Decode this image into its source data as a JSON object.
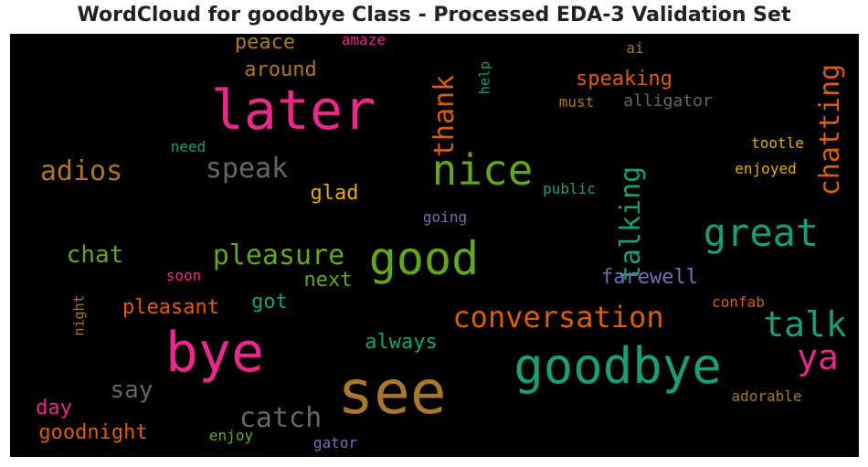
{
  "title": "WordCloud for goodbye Class - Processed EDA-3 Validation Set",
  "chart_data": {
    "type": "wordcloud",
    "title": "WordCloud for goodbye Class - Processed EDA-3 Validation Set",
    "background": "#000000",
    "words": [
      {
        "text": "see",
        "color": "#a8772b",
        "vertical": false
      },
      {
        "text": "bye",
        "color": "#e7298a",
        "vertical": false
      },
      {
        "text": "goodbye",
        "color": "#1b9e77",
        "vertical": false
      },
      {
        "text": "later",
        "color": "#e7298a",
        "vertical": false
      },
      {
        "text": "nice",
        "color": "#66a61e",
        "vertical": false
      },
      {
        "text": "good",
        "color": "#66a61e",
        "vertical": false
      },
      {
        "text": "great",
        "color": "#1b9e77",
        "vertical": false
      },
      {
        "text": "conversation",
        "color": "#d95f02",
        "vertical": false
      },
      {
        "text": "talk",
        "color": "#1b9e77",
        "vertical": false
      },
      {
        "text": "ya",
        "color": "#e7298a",
        "vertical": false
      },
      {
        "text": "chatting",
        "color": "#d95f02",
        "vertical": true
      },
      {
        "text": "talking",
        "color": "#1b9e77",
        "vertical": true
      },
      {
        "text": "thank",
        "color": "#d95f02",
        "vertical": true
      },
      {
        "text": "pleasure",
        "color": "#66a61e",
        "vertical": false
      },
      {
        "text": "speak",
        "color": "#666666",
        "vertical": false
      },
      {
        "text": "adios",
        "color": "#a8772b",
        "vertical": false
      },
      {
        "text": "catch",
        "color": "#666666",
        "vertical": false
      },
      {
        "text": "speaking",
        "color": "#d95f02",
        "vertical": false
      },
      {
        "text": "chat",
        "color": "#66a61e",
        "vertical": false
      },
      {
        "text": "say",
        "color": "#666666",
        "vertical": false
      },
      {
        "text": "goodnight",
        "color": "#d95f02",
        "vertical": false
      },
      {
        "text": "pleasant",
        "color": "#d95f02",
        "vertical": false
      },
      {
        "text": "farewell",
        "color": "#7570b3",
        "vertical": false
      },
      {
        "text": "around",
        "color": "#a8772b",
        "vertical": false
      },
      {
        "text": "peace",
        "color": "#a8772b",
        "vertical": false
      },
      {
        "text": "always",
        "color": "#1b9e77",
        "vertical": false
      },
      {
        "text": "glad",
        "color": "#e6ab02",
        "vertical": false
      },
      {
        "text": "next",
        "color": "#66a61e",
        "vertical": false
      },
      {
        "text": "got",
        "color": "#1b9e77",
        "vertical": false
      },
      {
        "text": "day",
        "color": "#e7298a",
        "vertical": false
      },
      {
        "text": "alligator",
        "color": "#666666",
        "vertical": false
      },
      {
        "text": "tootle",
        "color": "#e6ab02",
        "vertical": false
      },
      {
        "text": "enjoyed",
        "color": "#e6ab02",
        "vertical": false
      },
      {
        "text": "public",
        "color": "#1b9e77",
        "vertical": false
      },
      {
        "text": "going",
        "color": "#7570b3",
        "vertical": false
      },
      {
        "text": "confab",
        "color": "#d95f02",
        "vertical": false
      },
      {
        "text": "adorable",
        "color": "#a8772b",
        "vertical": false
      },
      {
        "text": "enjoy",
        "color": "#66a61e",
        "vertical": false
      },
      {
        "text": "gator",
        "color": "#7570b3",
        "vertical": false
      },
      {
        "text": "must",
        "color": "#a8772b",
        "vertical": false
      },
      {
        "text": "ai",
        "color": "#a8772b",
        "vertical": false
      },
      {
        "text": "need",
        "color": "#1b9e77",
        "vertical": false
      },
      {
        "text": "amaze",
        "color": "#e7298a",
        "vertical": false
      },
      {
        "text": "soon",
        "color": "#e7298a",
        "vertical": false
      },
      {
        "text": "help",
        "color": "#1b9e77",
        "vertical": true
      },
      {
        "text": "night",
        "color": "#a8772b",
        "vertical": true
      }
    ]
  }
}
